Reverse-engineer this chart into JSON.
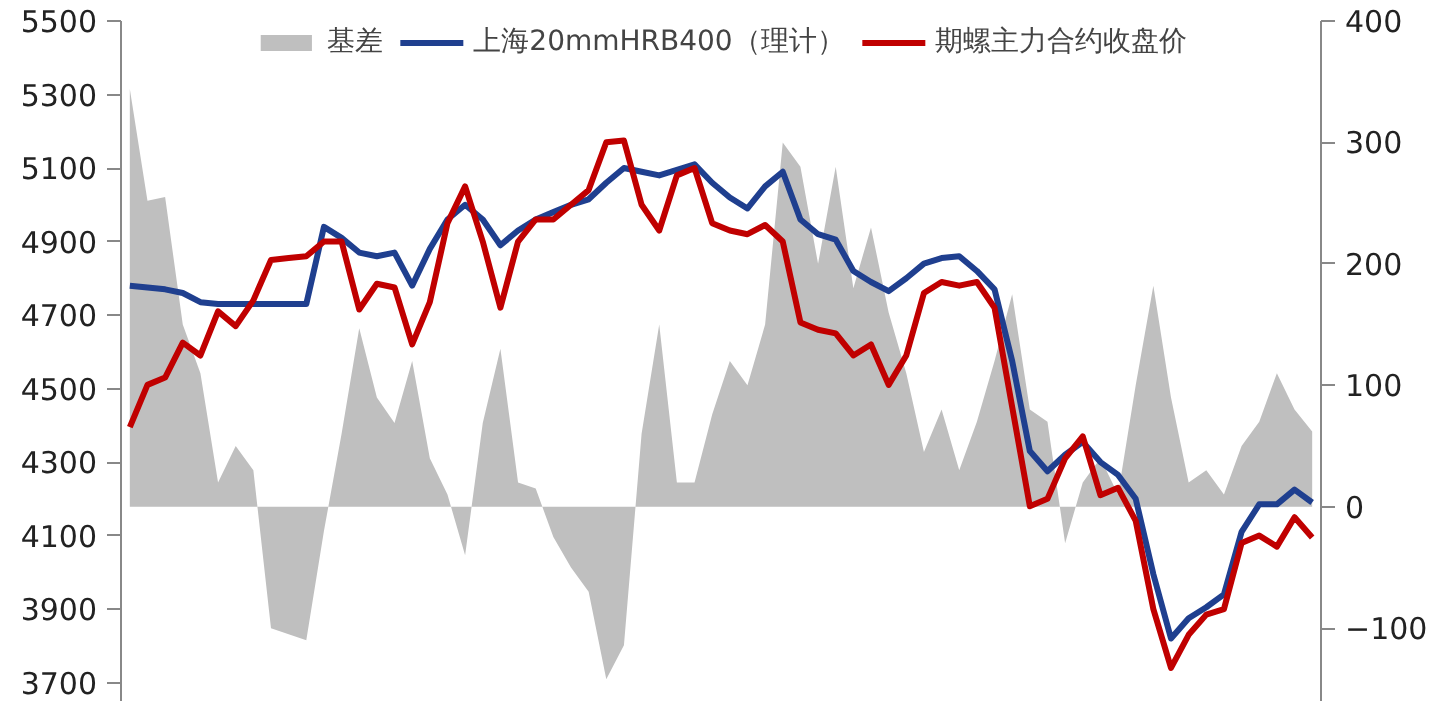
{
  "chart_data": {
    "type": "line",
    "categories": [
      null,
      null,
      null,
      null,
      null,
      null,
      null,
      null,
      null,
      null,
      null,
      null,
      null,
      null,
      null,
      null,
      null,
      null,
      null,
      null,
      null,
      null,
      null,
      null,
      null,
      null,
      null,
      null,
      null,
      null,
      null,
      null,
      null,
      null,
      null,
      null,
      null,
      null,
      null,
      null,
      null,
      null,
      null,
      null,
      null,
      null,
      null,
      null,
      null,
      null,
      null,
      null,
      null,
      null,
      null,
      null,
      null,
      null,
      null,
      null,
      null,
      null,
      null,
      null,
      null,
      null,
      null,
      null
    ],
    "series": [
      {
        "name": "基差",
        "type": "area",
        "axis": "y2",
        "color": "#bfbfbf",
        "values": [
          344,
          252,
          255,
          150,
          110,
          20,
          50,
          30,
          -100,
          -105,
          -110,
          -20,
          60,
          147,
          90,
          69,
          120,
          40,
          10,
          -40,
          69,
          130,
          20,
          15,
          -25,
          -50,
          -70,
          -142,
          -114,
          60,
          150,
          20,
          20,
          76,
          120,
          100,
          150,
          300,
          280,
          200,
          280,
          180,
          230,
          160,
          110,
          45,
          80,
          30,
          70,
          120,
          175,
          80,
          70,
          -30,
          20,
          40,
          10,
          100,
          182,
          90,
          20,
          30,
          10,
          50,
          70,
          110,
          80,
          62
        ]
      },
      {
        "name": "上海20mmHRB400（理计）",
        "color": "#1f3f8f",
        "values": [
          4780,
          4775,
          4770,
          4760,
          4735,
          4730,
          4730,
          4730,
          4730,
          4730,
          4730,
          4940,
          4910,
          4870,
          4860,
          4870,
          4780,
          4880,
          4960,
          5000,
          4960,
          4890,
          4930,
          4960,
          4980,
          5000,
          5015,
          5060,
          5100,
          5090,
          5080,
          5095,
          5110,
          5060,
          5020,
          4990,
          5050,
          5090,
          4960,
          4920,
          4905,
          4820,
          4790,
          4765,
          4800,
          4840,
          4855,
          4860,
          4820,
          4770,
          4575,
          4330,
          4275,
          4320,
          4355,
          4300,
          4265,
          4200,
          3995,
          3820,
          3875,
          3905,
          3940,
          4110,
          4185,
          4185,
          4225,
          4190
        ]
      },
      {
        "name": "期螺主力合约收盘价",
        "color": "#c00000",
        "values": [
          4395,
          4510,
          4530,
          4625,
          4590,
          4710,
          4670,
          4740,
          4850,
          4855,
          4860,
          4900,
          4900,
          4715,
          4785,
          4775,
          4620,
          4735,
          4950,
          5050,
          4900,
          4720,
          4900,
          4960,
          4960,
          5000,
          5040,
          5170,
          5175,
          5000,
          4930,
          5080,
          5100,
          4950,
          4930,
          4920,
          4945,
          4900,
          4680,
          4660,
          4650,
          4590,
          4620,
          4510,
          4590,
          4760,
          4790,
          4780,
          4790,
          4720,
          4450,
          4180,
          4200,
          4310,
          4370,
          4210,
          4230,
          4140,
          3900,
          3740,
          3830,
          3885,
          3900,
          4080,
          4100,
          4070,
          4150,
          4095
        ]
      }
    ],
    "ylim": [
      3650,
      5500
    ],
    "yticks": [
      3700,
      3900,
      4100,
      4300,
      4500,
      4700,
      4900,
      5100,
      5300,
      5500
    ],
    "y2lim": [
      -160,
      400
    ],
    "y2ticks": [
      -100,
      0,
      100,
      200,
      300,
      400
    ],
    "legend": "top",
    "grid": false,
    "tick_labels": "y"
  }
}
